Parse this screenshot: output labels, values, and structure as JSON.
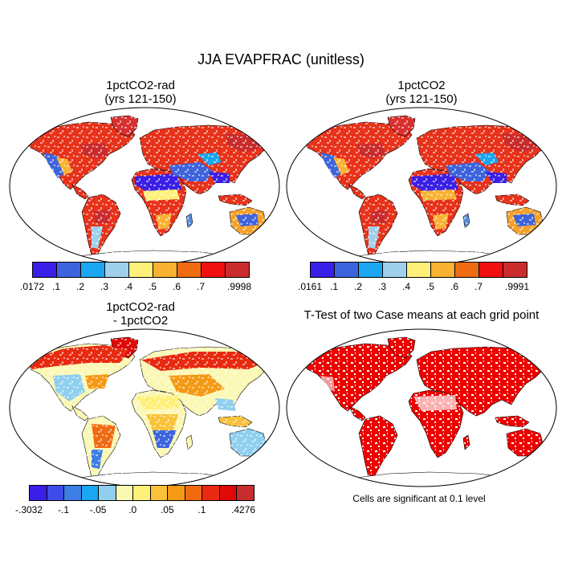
{
  "title": "JJA EVAPFRAC (unitless)",
  "panels": {
    "p1": {
      "title_line1": "1pctCO2-rad",
      "title_line2": "(yrs 121-150)"
    },
    "p2": {
      "title_line1": "1pctCO2",
      "title_line2": "(yrs 121-150)"
    },
    "p3": {
      "title_line1": "1pctCO2-rad",
      "title_line2": "- 1pctCO2"
    },
    "p4": {
      "title_line1": "T-Test of two Case means at each grid point",
      "note": "Cells are significant at 0.1 level"
    }
  },
  "colorbars": {
    "cb1": {
      "labels": [
        ".0172",
        ".1",
        ".2",
        ".3",
        ".4",
        ".5",
        ".6",
        ".7",
        ".9998"
      ],
      "colors": [
        "#3a1fe8",
        "#3d64dc",
        "#1aa6f0",
        "#9ed0eb",
        "#fff07a",
        "#f9b233",
        "#f06a12",
        "#f01010",
        "#c92c2c"
      ]
    },
    "cb2": {
      "labels": [
        ".0161",
        ".1",
        ".2",
        ".3",
        ".4",
        ".5",
        ".6",
        ".7",
        ".9991"
      ],
      "colors": [
        "#3a1fe8",
        "#3d64dc",
        "#1aa6f0",
        "#9ed0eb",
        "#fff07a",
        "#f9b233",
        "#f06a12",
        "#f01010",
        "#c92c2c"
      ]
    },
    "cb3": {
      "labels": [
        "-.3032",
        "-.1",
        "-.05",
        ".0",
        ".05",
        ".1",
        ".4276"
      ],
      "colors": [
        "#3a1fe8",
        "#3d4ce8",
        "#3d7ee6",
        "#1aa6f0",
        "#8fcfef",
        "#fbf8b4",
        "#fff07a",
        "#f9c23a",
        "#f59a14",
        "#f06a12",
        "#e82a10",
        "#e00808",
        "#c92c2c"
      ]
    }
  }
}
